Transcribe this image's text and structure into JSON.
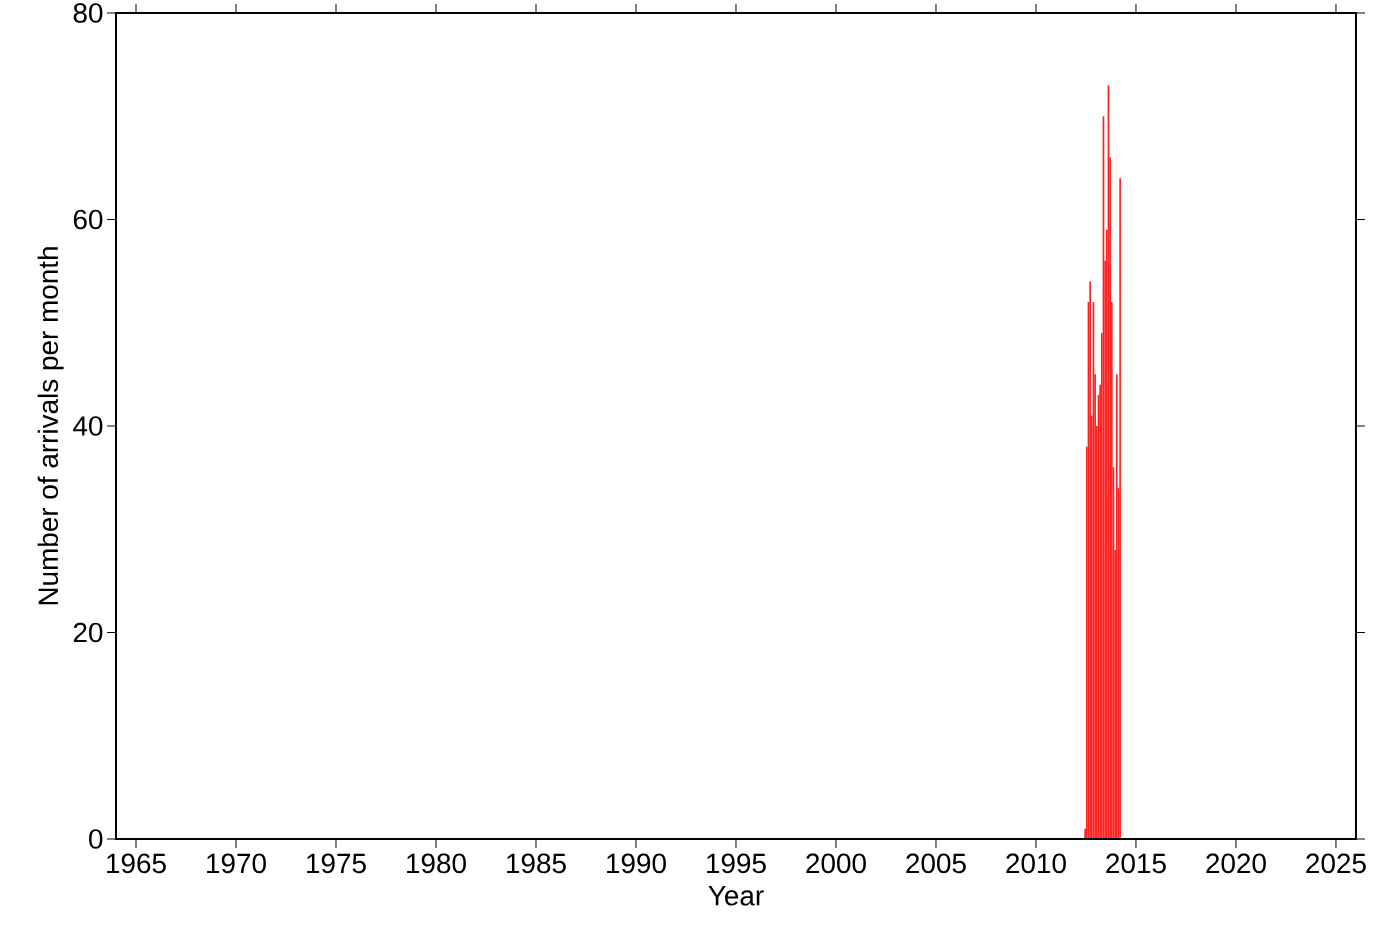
{
  "chart_data": {
    "type": "histogram",
    "xlabel": "Year",
    "ylabel": "Number of arrivals per month",
    "bins": [
      2012.417,
      2012.5,
      2012.583,
      2012.667,
      2012.75,
      2012.833,
      2012.917,
      2013,
      2013.083,
      2013.167,
      2013.25,
      2013.333,
      2013.417,
      2013.5,
      2013.583,
      2013.667,
      2013.75,
      2013.833,
      2013.917,
      2014,
      2014.083,
      2014.167,
      2014.25
    ],
    "values": [
      1,
      38,
      52,
      54,
      41,
      52,
      45,
      40,
      43,
      44,
      49,
      70,
      56,
      59,
      73,
      66,
      52,
      36,
      28,
      45,
      34,
      64
    ],
    "color": "#ff2020",
    "xlim": [
      1964,
      2026
    ],
    "ylim": [
      0,
      80
    ],
    "xticks": [
      1965,
      1970,
      1975,
      1980,
      1985,
      1990,
      1995,
      2000,
      2005,
      2010,
      2015,
      2020,
      2025
    ],
    "yticks": [
      0,
      20,
      40,
      60,
      80
    ]
  }
}
